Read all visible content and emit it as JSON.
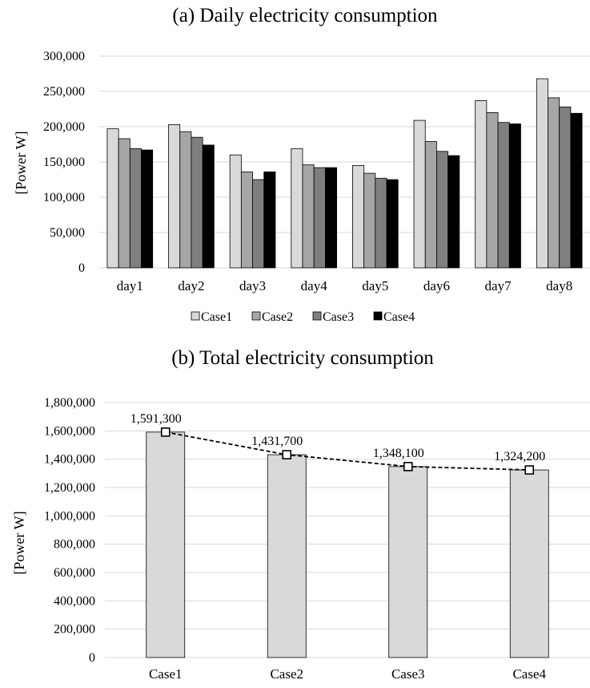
{
  "chart_data": [
    {
      "type": "bar",
      "title": "(a) Daily electricity consumption",
      "ylabel": "[Power W]",
      "xlabel": "",
      "ylim": [
        0,
        300000
      ],
      "yticks": [
        0,
        50000,
        100000,
        150000,
        200000,
        250000,
        300000
      ],
      "ytick_labels": [
        "0",
        "50,000",
        "100,000",
        "150,000",
        "200,000",
        "250,000",
        "300,000"
      ],
      "grid": true,
      "legend_position": "bottom",
      "categories": [
        "day1",
        "day2",
        "day3",
        "day4",
        "day5",
        "day6",
        "day7",
        "day8"
      ],
      "series": [
        {
          "name": "Case1",
          "color": "#d9d9d9",
          "values": [
            197000,
            203000,
            160000,
            169000,
            145000,
            209000,
            237000,
            268000
          ]
        },
        {
          "name": "Case2",
          "color": "#a6a6a6",
          "values": [
            183000,
            193000,
            136000,
            146000,
            134000,
            179000,
            220000,
            241000
          ]
        },
        {
          "name": "Case3",
          "color": "#7f7f7f",
          "values": [
            169000,
            185000,
            125000,
            142000,
            127000,
            165000,
            206000,
            228000
          ]
        },
        {
          "name": "Case4",
          "color": "#000000",
          "values": [
            167000,
            174000,
            136000,
            142000,
            125000,
            159000,
            204000,
            219000
          ]
        }
      ]
    },
    {
      "type": "bar",
      "title": "(b) Total electricity consumption",
      "ylabel": "[Power W]",
      "xlabel": "",
      "ylim": [
        0,
        1800000
      ],
      "yticks": [
        0,
        200000,
        400000,
        600000,
        800000,
        1000000,
        1200000,
        1400000,
        1600000,
        1800000
      ],
      "ytick_labels": [
        "0",
        "200,000",
        "400,000",
        "600,000",
        "800,000",
        "1,000,000",
        "1,200,000",
        "1,400,000",
        "1,600,000",
        "1,800,000"
      ],
      "grid": true,
      "categories": [
        "Case1",
        "Case2",
        "Case3",
        "Case4"
      ],
      "values": [
        1591300,
        1431700,
        1348100,
        1324200
      ],
      "data_labels": [
        "1,591,300",
        "1,431,700",
        "1,348,100",
        "1,324,200"
      ],
      "bar_color": "#d9d9d9",
      "overlay_line": "dashed line with square markers",
      "line_color": "#000000"
    }
  ]
}
